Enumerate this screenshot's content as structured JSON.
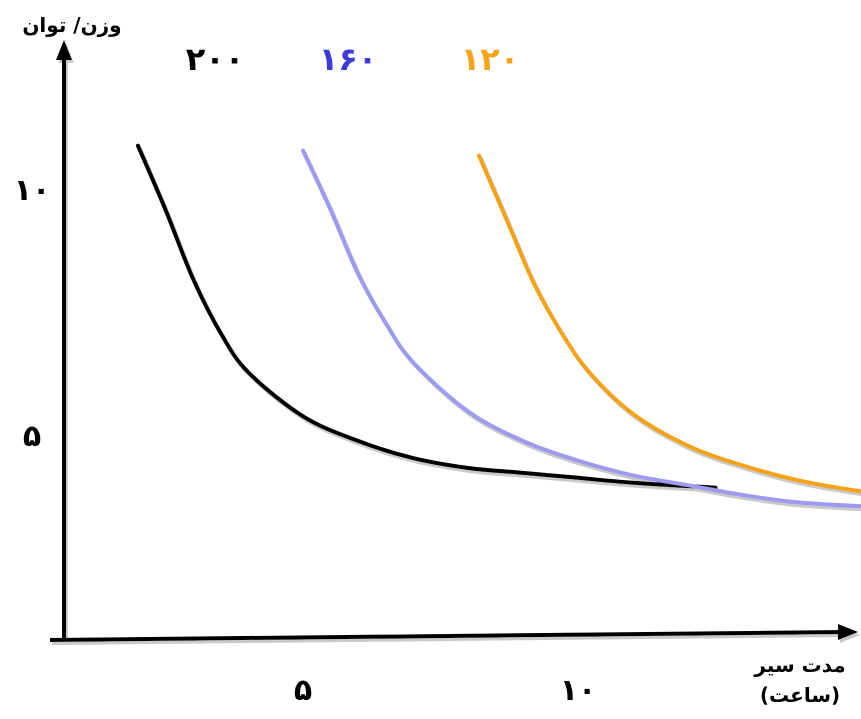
{
  "chart_data": {
    "type": "line",
    "ylabel": "وزن/ توان",
    "xlabel_line1": "مدت سیر",
    "xlabel_line2": "(ساعت)",
    "x_ticks": [
      {
        "value": 5,
        "label": "۵"
      },
      {
        "value": 10,
        "label": "۱۰"
      }
    ],
    "y_ticks": [
      {
        "value": 5,
        "label": "۵"
      },
      {
        "value": 10,
        "label": "۱۰"
      }
    ],
    "xlim": [
      0,
      16
    ],
    "ylim": [
      0,
      12
    ],
    "grid": false,
    "series": [
      {
        "name": "۲۰۰",
        "color": "#000000",
        "points": [
          [
            2.0,
            10.9
          ],
          [
            2.5,
            9.6
          ],
          [
            3.0,
            8.2
          ],
          [
            3.5,
            7.1
          ],
          [
            4.0,
            6.3
          ],
          [
            5.0,
            5.4
          ],
          [
            6.0,
            4.9
          ],
          [
            7.0,
            4.55
          ],
          [
            8.0,
            4.35
          ],
          [
            9.0,
            4.25
          ],
          [
            10.0,
            4.15
          ],
          [
            11.0,
            4.05
          ],
          [
            12.5,
            3.95
          ]
        ]
      },
      {
        "name": "۱۶۰",
        "color": "#9b9bf0",
        "points": [
          [
            5.0,
            10.8
          ],
          [
            5.5,
            9.6
          ],
          [
            6.0,
            8.3
          ],
          [
            6.5,
            7.3
          ],
          [
            7.0,
            6.5
          ],
          [
            8.0,
            5.5
          ],
          [
            9.0,
            4.9
          ],
          [
            10.0,
            4.5
          ],
          [
            11.0,
            4.2
          ],
          [
            12.0,
            4.0
          ],
          [
            13.0,
            3.8
          ],
          [
            14.0,
            3.65
          ],
          [
            15.5,
            3.55
          ]
        ]
      },
      {
        "name": "۱۲۰",
        "color": "#f5a319",
        "points": [
          [
            8.2,
            10.7
          ],
          [
            8.7,
            9.4
          ],
          [
            9.2,
            8.1
          ],
          [
            9.7,
            7.1
          ],
          [
            10.2,
            6.3
          ],
          [
            11.0,
            5.45
          ],
          [
            12.0,
            4.8
          ],
          [
            13.0,
            4.4
          ],
          [
            14.0,
            4.1
          ],
          [
            15.0,
            3.9
          ],
          [
            16.0,
            3.75
          ],
          [
            17.0,
            3.65
          ]
        ]
      }
    ]
  },
  "series_label_colors": [
    "#000000",
    "#3b3bd9",
    "#f5a319"
  ]
}
